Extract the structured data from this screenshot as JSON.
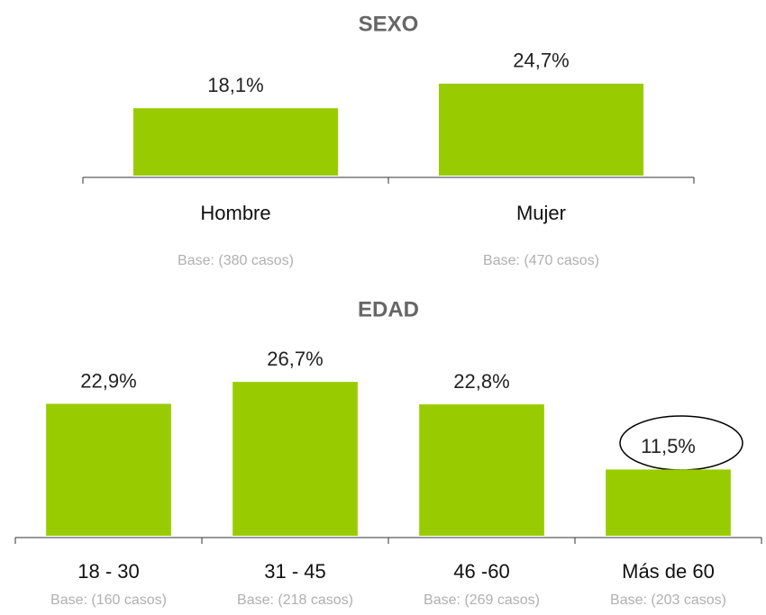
{
  "chart_data": [
    {
      "type": "bar",
      "title": "SEXO",
      "categories": [
        "Hombre",
        "Mujer"
      ],
      "values": [
        18.1,
        24.7
      ],
      "value_labels": [
        "18,1%",
        "24,7%"
      ],
      "annotations": [
        "Base: (380 casos)",
        "Base: (470 casos)"
      ],
      "color": "#99cc00",
      "ylim": [
        0,
        30
      ]
    },
    {
      "type": "bar",
      "title": "EDAD",
      "categories": [
        "18 - 30",
        "31 - 45",
        "46 -60",
        "Más de 60"
      ],
      "values": [
        22.9,
        26.7,
        22.8,
        11.5
      ],
      "value_labels": [
        "22,9%",
        "26,7%",
        "22,8%",
        "11,5%"
      ],
      "annotations": [
        "Base: (160 casos)",
        "Base: (218 casos)",
        "Base: (269 casos)",
        "Base: (203 casos)"
      ],
      "color": "#99cc00",
      "ylim": [
        0,
        30
      ]
    }
  ]
}
